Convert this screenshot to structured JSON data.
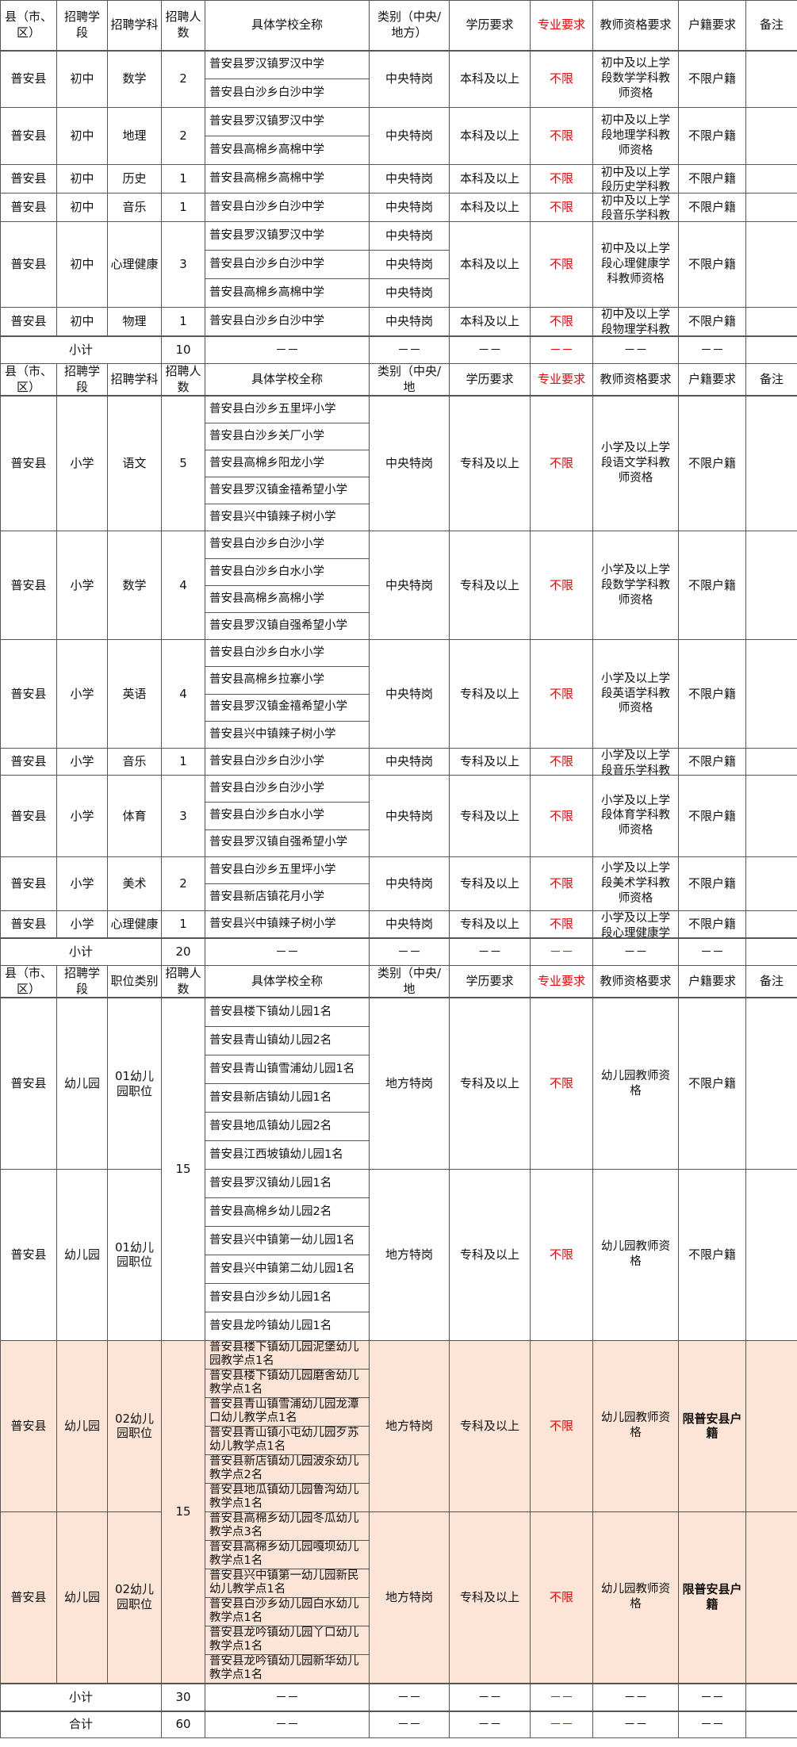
{
  "colors": {
    "accent_red": "#ff0000",
    "highlight_bg": "#fce4d6",
    "border": "#555555"
  },
  "sections": [
    {
      "header": [
        "县（市、区）",
        "招聘学段",
        "招聘学科",
        "招聘人数",
        "具体学校全称",
        "类别（中央/地方）",
        "学历要求",
        "专业要求",
        "教师资格要求",
        "户籍要求",
        "备注"
      ],
      "groups": [
        {
          "county": "普安县",
          "stage": "初中",
          "subject": "数学",
          "count": "2",
          "schools": [
            "普安县罗汉镇罗汉中学",
            "普安县白沙乡白沙中学"
          ],
          "category": "中央特岗",
          "education": "本科及以上",
          "major": "不限",
          "cert": "初中及以上学段数学学科教师资格",
          "hukou": "不限户籍",
          "remark": ""
        },
        {
          "county": "普安县",
          "stage": "初中",
          "subject": "地理",
          "count": "2",
          "schools": [
            "普安县罗汉镇罗汉中学",
            "普安县高棉乡高棉中学"
          ],
          "category": "中央特岗",
          "education": "本科及以上",
          "major": "不限",
          "cert": "初中及以上学段地理学科教师资格",
          "hukou": "不限户籍",
          "remark": ""
        },
        {
          "county": "普安县",
          "stage": "初中",
          "subject": "历史",
          "count": "1",
          "schools": [
            "普安县高棉乡高棉中学"
          ],
          "category": "中央特岗",
          "education": "本科及以上",
          "major": "不限",
          "cert": "初中及以上学段历史学科教",
          "hukou": "不限户籍",
          "remark": ""
        },
        {
          "county": "普安县",
          "stage": "初中",
          "subject": "音乐",
          "count": "1",
          "schools": [
            "普安县白沙乡白沙中学"
          ],
          "category": "中央特岗",
          "education": "本科及以上",
          "major": "不限",
          "cert": "初中及以上学段音乐学科教",
          "hukou": "不限户籍",
          "remark": ""
        },
        {
          "county": "普安县",
          "stage": "初中",
          "subject": "心理健康",
          "count": "3",
          "schools": [
            "普安县罗汉镇罗汉中学",
            "普安县白沙乡白沙中学",
            "普安县高棉乡高棉中学"
          ],
          "categories": [
            "中央特岗",
            "中央特岗",
            "中央特岗"
          ],
          "education": "本科及以上",
          "major": "不限",
          "cert": "初中及以上学段心理健康学科教师资格",
          "hukou": "不限户籍",
          "remark": ""
        },
        {
          "county": "普安县",
          "stage": "初中",
          "subject": "物理",
          "count": "1",
          "schools": [
            "普安县白沙乡白沙中学"
          ],
          "category": "中央特岗",
          "education": "本科及以上",
          "major": "不限",
          "cert": "初中及以上学段物理学科教",
          "hukou": "不限户籍",
          "remark": ""
        }
      ],
      "subtotal": {
        "label": "小计",
        "count": "10",
        "dash": "－－"
      }
    },
    {
      "header": [
        "县（市、区）",
        "招聘学段",
        "招聘学科",
        "招聘人数",
        "具体学校全称",
        "类别（中央/地",
        "学历要求",
        "专业要求",
        "教师资格要求",
        "户籍要求",
        "备注"
      ],
      "groups": [
        {
          "county": "普安县",
          "stage": "小学",
          "subject": "语文",
          "count": "5",
          "schools": [
            "普安县白沙乡五里坪小学",
            "普安县白沙乡关厂小学",
            "普安县高棉乡阳龙小学",
            "普安县罗汉镇金禧希望小学",
            "普安县兴中镇辣子树小学"
          ],
          "category": "中央特岗",
          "education": "专科及以上",
          "major": "不限",
          "cert": "小学及以上学段语文学科教师资格",
          "hukou": "不限户籍",
          "remark": ""
        },
        {
          "county": "普安县",
          "stage": "小学",
          "subject": "数学",
          "count": "4",
          "schools": [
            "普安县白沙乡白沙小学",
            "普安县白沙乡白水小学",
            "普安县高棉乡高棉小学",
            "普安县罗汉镇自强希望小学"
          ],
          "category": "中央特岗",
          "education": "专科及以上",
          "major": "不限",
          "cert": "小学及以上学段数学学科教师资格",
          "hukou": "不限户籍",
          "remark": ""
        },
        {
          "county": "普安县",
          "stage": "小学",
          "subject": "英语",
          "count": "4",
          "schools": [
            "普安县白沙乡白水小学",
            "普安县高棉乡拉寨小学",
            "普安县罗汉镇金禧希望小学",
            "普安县兴中镇辣子树小学"
          ],
          "category": "中央特岗",
          "education": "专科及以上",
          "major": "不限",
          "cert": "小学及以上学段英语学科教师资格",
          "hukou": "不限户籍",
          "remark": ""
        },
        {
          "county": "普安县",
          "stage": "小学",
          "subject": "音乐",
          "count": "1",
          "schools": [
            "普安县白沙乡白沙小学"
          ],
          "category": "中央特岗",
          "education": "专科及以上",
          "major": "不限",
          "cert": "小学及以上学段音乐学科教",
          "hukou": "不限户籍",
          "remark": ""
        },
        {
          "county": "普安县",
          "stage": "小学",
          "subject": "体育",
          "count": "3",
          "schools": [
            "普安县白沙乡白沙小学",
            "普安县白沙乡白水小学",
            "普安县罗汉镇自强希望小学"
          ],
          "category": "中央特岗",
          "education": "专科及以上",
          "major": "不限",
          "cert": "小学及以上学段体育学科教师资格",
          "hukou": "不限户籍",
          "remark": ""
        },
        {
          "county": "普安县",
          "stage": "小学",
          "subject": "美术",
          "count": "2",
          "schools": [
            "普安县白沙乡五里坪小学",
            "普安县新店镇花月小学"
          ],
          "category": "中央特岗",
          "education": "专科及以上",
          "major": "不限",
          "cert": "小学及以上学段美术学科教师资格",
          "hukou": "不限户籍",
          "remark": ""
        },
        {
          "county": "普安县",
          "stage": "小学",
          "subject": "心理健康",
          "count": "1",
          "schools": [
            "普安县兴中镇辣子树小学"
          ],
          "category": "中央特岗",
          "education": "专科及以上",
          "major": "不限",
          "cert": "小学及以上学段心理健康学",
          "hukou": "不限户籍",
          "remark": ""
        }
      ],
      "subtotal": {
        "label": "小计",
        "count": "20",
        "dash": "－－"
      }
    },
    {
      "header": [
        "县（市、区）",
        "招聘学段",
        "职位类别",
        "招聘人数",
        "具体学校全称",
        "类别（中央/地",
        "学历要求",
        "专业要求",
        "教师资格要求",
        "户籍要求",
        "备注"
      ],
      "groups": [
        {
          "county": "普安县",
          "stage": "幼儿园",
          "subject": "01幼儿园职位",
          "count": "15",
          "count_groups": 2,
          "schools": [
            "普安县楼下镇幼儿园1名",
            "普安县青山镇幼儿园2名",
            "普安县青山镇雪浦幼儿园1名",
            "普安县新店镇幼儿园1名",
            "普安县地瓜镇幼儿园2名",
            "普安县江西坡镇幼儿园1名"
          ],
          "category": "地方特岗",
          "education": "专科及以上",
          "major": "不限",
          "cert": "幼儿园教师资格",
          "hukou": "不限户籍",
          "remark": ""
        },
        {
          "county": "普安县",
          "stage": "幼儿园",
          "subject": "01幼儿园职位",
          "schools": [
            "普安县罗汉镇幼儿园1名",
            "普安县高棉乡幼儿园2名",
            "普安县兴中镇第一幼儿园1名",
            "普安县兴中镇第二幼儿园1名",
            "普安县白沙乡幼儿园1名",
            "普安县龙吟镇幼儿园1名"
          ],
          "category": "地方特岗",
          "education": "专科及以上",
          "major": "不限",
          "cert": "幼儿园教师资格",
          "hukou": "不限户籍",
          "remark": ""
        },
        {
          "county": "普安县",
          "stage": "幼儿园",
          "subject": "02幼儿园职位",
          "count": "15",
          "count_groups": 2,
          "highlight": true,
          "schools": [
            "普安县楼下镇幼儿园泥堡幼儿园教学点1名",
            "普安县楼下镇幼儿园磨舍幼儿教学点1名",
            "普安县青山镇雪浦幼儿园龙潭口幼儿教学点1名",
            "普安县青山镇小屯幼儿园歹苏幼儿教学点1名",
            "普安县新店镇幼儿园波汆幼儿教学点2名",
            "普安县地瓜镇幼儿园鲁沟幼儿教学点1名"
          ],
          "category": "地方特岗",
          "education": "专科及以上",
          "major": "不限",
          "cert": "幼儿园教师资格",
          "hukou": "限普安县户籍",
          "remark": ""
        },
        {
          "county": "普安县",
          "stage": "幼儿园",
          "subject": "02幼儿园职位",
          "highlight": true,
          "schools": [
            "普安县高棉乡幼儿园冬瓜幼儿教学点3名",
            "普安县高棉乡幼儿园嘎坝幼儿教学点1名",
            "普安县兴中镇第一幼儿园新民幼儿教学点1名",
            "普安县白沙乡幼儿园白水幼儿教学点1名",
            "普安县龙吟镇幼儿园丫口幼儿教学点1名",
            "普安县龙吟镇幼儿园新华幼儿教学点1名"
          ],
          "category": "地方特岗",
          "education": "专科及以上",
          "major": "不限",
          "cert": "幼儿园教师资格",
          "hukou": "限普安县户籍",
          "remark": ""
        }
      ],
      "subtotal": {
        "label": "小计",
        "count": "30",
        "dash": "－－"
      }
    }
  ],
  "total": {
    "label": "合计",
    "count": "60",
    "dash": "－－"
  }
}
